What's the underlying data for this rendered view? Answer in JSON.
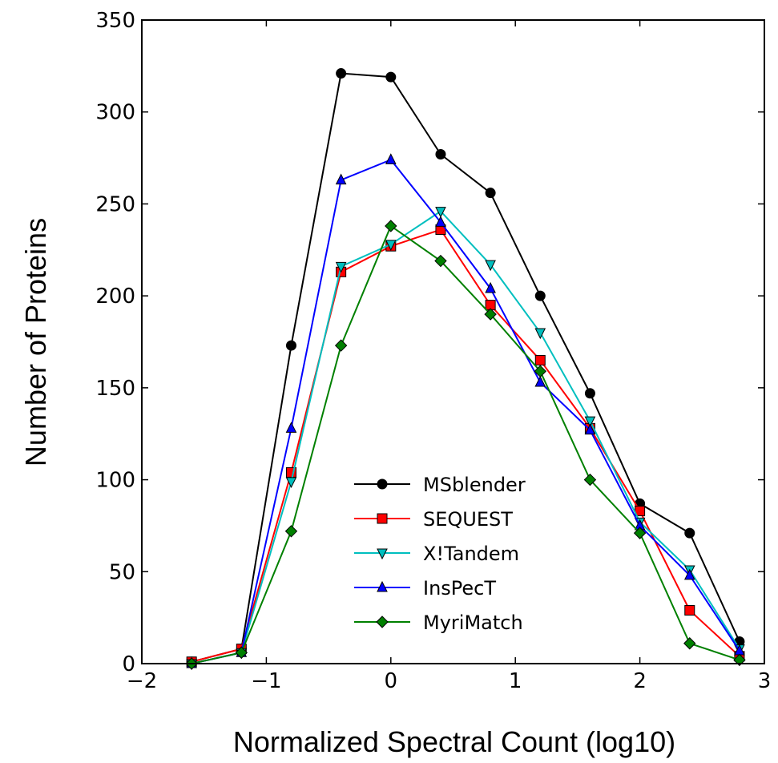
{
  "chart_data": {
    "type": "line",
    "title": "",
    "xlabel": "Normalized Spectral Count (log10)",
    "ylabel": "Number of Proteins",
    "xlim": [
      -2,
      3
    ],
    "ylim": [
      0,
      350
    ],
    "xticks": [
      -2,
      -1,
      0,
      1,
      2,
      3
    ],
    "xtick_labels": [
      "−2",
      "−1",
      "0",
      "1",
      "2",
      "3"
    ],
    "yticks": [
      0,
      50,
      100,
      150,
      200,
      250,
      300,
      350
    ],
    "ytick_labels": [
      "0",
      "50",
      "100",
      "150",
      "200",
      "250",
      "300",
      "350"
    ],
    "grid": false,
    "legend_position": "lower-center",
    "x": [
      -1.6,
      -1.2,
      -0.8,
      -0.4,
      0.0,
      0.4,
      0.8,
      1.2,
      1.6,
      2.0,
      2.4,
      2.8
    ],
    "series": [
      {
        "name": "MSblender",
        "color": "#000000",
        "marker": "circle",
        "values": [
          1,
          8,
          173,
          321,
          319,
          277,
          256,
          200,
          147,
          87,
          71,
          12
        ]
      },
      {
        "name": "SEQUEST",
        "color": "#ff0000",
        "marker": "square",
        "values": [
          1,
          8,
          104,
          213,
          227,
          236,
          195,
          165,
          128,
          83,
          29,
          4
        ]
      },
      {
        "name": "X!Tandem",
        "color": "#00bfbf",
        "marker": "triangle-down",
        "values": [
          0,
          6,
          99,
          216,
          228,
          246,
          217,
          180,
          132,
          77,
          51,
          8
        ]
      },
      {
        "name": "InsPecT",
        "color": "#0000ff",
        "marker": "triangle-up",
        "values": [
          0,
          6,
          128,
          263,
          274,
          240,
          204,
          153,
          127,
          75,
          48,
          7
        ]
      },
      {
        "name": "MyriMatch",
        "color": "#008000",
        "marker": "diamond",
        "values": [
          0,
          6,
          72,
          173,
          238,
          219,
          190,
          159,
          100,
          71,
          11,
          2
        ]
      }
    ]
  }
}
